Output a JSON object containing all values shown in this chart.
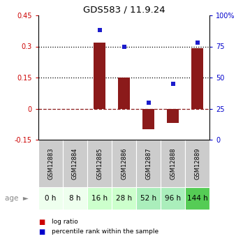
{
  "title": "GDS583 / 11.9.24",
  "samples": [
    "GSM12883",
    "GSM12884",
    "GSM12885",
    "GSM12886",
    "GSM12887",
    "GSM12888",
    "GSM12889"
  ],
  "ages": [
    "0 h",
    "8 h",
    "16 h",
    "28 h",
    "52 h",
    "96 h",
    "144 h"
  ],
  "log_ratio": [
    0.0,
    0.0,
    0.32,
    0.15,
    -0.1,
    -0.07,
    0.29
  ],
  "percentile_rank": [
    null,
    null,
    88,
    75,
    30,
    45,
    78
  ],
  "ylim_left": [
    -0.15,
    0.45
  ],
  "ylim_right": [
    0,
    100
  ],
  "bar_color": "#8B1A1A",
  "dot_color": "#1C1CCC",
  "hline_vals": [
    0.3,
    0.15,
    0.0
  ],
  "hline_styles": [
    "dotted",
    "dotted",
    "dashed"
  ],
  "hline_colors": [
    "black",
    "black",
    "#8B1A1A"
  ],
  "right_ticks": [
    0,
    25,
    50,
    75,
    100
  ],
  "right_tick_labels": [
    "0",
    "25",
    "50",
    "75",
    "100%"
  ],
  "left_ticks": [
    -0.15,
    0,
    0.15,
    0.3,
    0.45
  ],
  "left_tick_labels": [
    "-0.15",
    "0",
    "0.15",
    "0.3",
    "0.45"
  ],
  "age_colors": [
    "#eeffee",
    "#eeffee",
    "#ccffcc",
    "#ccffcc",
    "#aaeebb",
    "#aaeebb",
    "#55cc55"
  ],
  "label_bg": "#cccccc",
  "legend_bar_color": "#cc0000",
  "legend_dot_color": "#0000cc"
}
